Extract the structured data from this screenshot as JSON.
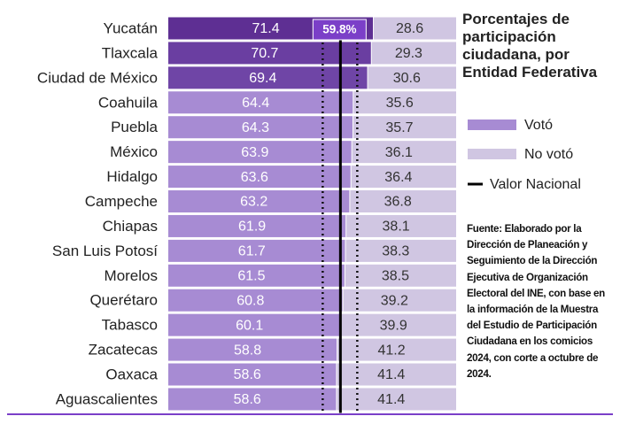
{
  "chart_data": {
    "type": "stacked-bar-horizontal",
    "title": "Porcentajes de participación ciudadana, por Entidad Federativa",
    "source": "Fuente: Elaborado por la Dirección de Planeación y Seguimiento de la Dirección Ejecutiva de Organización Electoral del INE, con base en la información de la Muestra del Estudio de Participación Ciudadana en los comicios 2024, con corte a octubre de 2024.",
    "categories": [
      "Yucatán",
      "Tlaxcala",
      "Ciudad de México",
      "Coahuila",
      "Puebla",
      "México",
      "Hidalgo",
      "Campeche",
      "Chiapas",
      "San Luis Potosí",
      "Morelos",
      "Querétaro",
      "Tabasco",
      "Zacatecas",
      "Oaxaca",
      "Aguascalientes"
    ],
    "xlim": [
      0,
      100
    ],
    "series": [
      {
        "name": "Votó",
        "color": "#a78bd3",
        "colors": [
          "#5e2f93",
          "#6a3ea1",
          "#6f45a6",
          "#a78bd3",
          "#a78bd3",
          "#a78bd3",
          "#a78bd3",
          "#a78bd3",
          "#a78bd3",
          "#a78bd3",
          "#a78bd3",
          "#a78bd3",
          "#a78bd3",
          "#a78bd3",
          "#a78bd3",
          "#a78bd3"
        ],
        "values": [
          71.4,
          70.7,
          69.4,
          64.4,
          64.3,
          63.9,
          63.6,
          63.2,
          61.9,
          61.7,
          61.5,
          60.8,
          60.1,
          58.8,
          58.6,
          58.6
        ]
      },
      {
        "name": "No votó",
        "color": "#d0c6e2",
        "values": [
          28.6,
          29.3,
          30.6,
          35.6,
          35.7,
          36.1,
          36.4,
          36.8,
          38.1,
          38.3,
          38.5,
          39.2,
          39.9,
          41.2,
          41.4,
          41.4
        ]
      }
    ],
    "reference": {
      "name": "Valor Nacional",
      "value": 59.8,
      "label": "59.8%",
      "color": "#000000",
      "label_color": "#7b3fc8"
    }
  }
}
